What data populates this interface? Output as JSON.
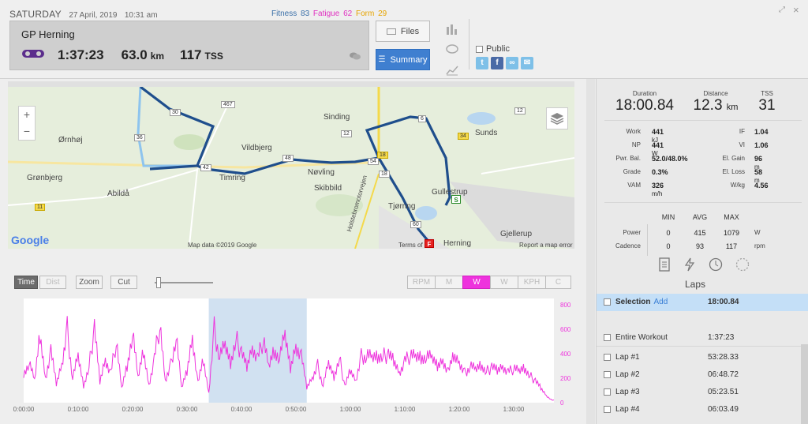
{
  "header": {
    "day": "SATURDAY",
    "date": "27 April, 2019",
    "time": "10:31 am",
    "fitness_label": "Fitness",
    "fitness": "83",
    "fatigue_label": "Fatigue",
    "fatigue": "62",
    "form_label": "Form",
    "form": "29",
    "workout_name": "GP Herning",
    "duration": "1:37:23",
    "distance": "63.0",
    "distance_unit": "km",
    "tss": "117",
    "tss_unit": "TSS",
    "files_label": "Files",
    "summary_label": "Summary",
    "public_label": "Public"
  },
  "map": {
    "places": [
      "Ørnhøj",
      "Grønbjerg",
      "Abildå",
      "Vildbjerg",
      "Timring",
      "Nøvling",
      "Skibbild",
      "Sinding",
      "Sunds",
      "Gullestrup",
      "Tjørring",
      "Gjellerup",
      "Herning",
      "Holstebromotorvejen"
    ],
    "roads": [
      "467",
      "30",
      "36",
      "42",
      "18",
      "48",
      "12",
      "6",
      "34",
      "12",
      "54",
      "18",
      "11",
      "60",
      "A"
    ],
    "google": "Google",
    "attribution": "Map data ©2019 Google",
    "terms": "Terms of",
    "report": "Report a map error",
    "start_marker": "S",
    "finish_marker": "F",
    "zoom_in": "+",
    "zoom_out": "−"
  },
  "chart_controls": {
    "time": "Time",
    "dist": "Dist",
    "zoom": "Zoom",
    "cut": "Cut",
    "metrics": [
      "RPM",
      "M",
      "W",
      "W",
      "KPH",
      "C"
    ],
    "active_metric": "W"
  },
  "chart_data": {
    "type": "line",
    "series": [
      {
        "name": "W",
        "color": "#ee33dd"
      }
    ],
    "x_ticks": [
      "0:00:00",
      "0:10:00",
      "0:20:00",
      "0:30:00",
      "0:40:00",
      "0:50:00",
      "1:00:00",
      "1:10:00",
      "1:20:00",
      "1:30:00"
    ],
    "y_ticks": [
      "800",
      "600",
      "400",
      "200",
      "0"
    ],
    "ylim": [
      0,
      850
    ],
    "x_range_minutes": [
      0,
      97.4
    ],
    "selection_minutes": [
      34,
      52
    ],
    "profile": [
      [
        0,
        250
      ],
      [
        1,
        320
      ],
      [
        2,
        180
      ],
      [
        3,
        560
      ],
      [
        4,
        210
      ],
      [
        5,
        420
      ],
      [
        6,
        150
      ],
      [
        7,
        310
      ],
      [
        8,
        600
      ],
      [
        9,
        200
      ],
      [
        10,
        380
      ],
      [
        11,
        140
      ],
      [
        12,
        290
      ],
      [
        13,
        610
      ],
      [
        14,
        170
      ],
      [
        15,
        360
      ],
      [
        16,
        230
      ],
      [
        17,
        500
      ],
      [
        18,
        120
      ],
      [
        19,
        310
      ],
      [
        20,
        560
      ],
      [
        21,
        200
      ],
      [
        22,
        420
      ],
      [
        23,
        150
      ],
      [
        24,
        350
      ],
      [
        25,
        650
      ],
      [
        26,
        180
      ],
      [
        27,
        300
      ],
      [
        28,
        540
      ],
      [
        29,
        120
      ],
      [
        30,
        260
      ],
      [
        31,
        560
      ],
      [
        32,
        160
      ],
      [
        33,
        340
      ],
      [
        34,
        80
      ],
      [
        35,
        600
      ],
      [
        36,
        380
      ],
      [
        37,
        470
      ],
      [
        38,
        330
      ],
      [
        39,
        520
      ],
      [
        40,
        410
      ],
      [
        41,
        290
      ],
      [
        42,
        460
      ],
      [
        43,
        350
      ],
      [
        44,
        520
      ],
      [
        45,
        300
      ],
      [
        46,
        440
      ],
      [
        47,
        360
      ],
      [
        48,
        540
      ],
      [
        49,
        280
      ],
      [
        50,
        480
      ],
      [
        51,
        380
      ],
      [
        52,
        120
      ],
      [
        53,
        200
      ],
      [
        54,
        300
      ],
      [
        55,
        140
      ],
      [
        56,
        320
      ],
      [
        57,
        210
      ],
      [
        58,
        360
      ],
      [
        59,
        130
      ],
      [
        60,
        260
      ],
      [
        61,
        180
      ],
      [
        62,
        380
      ],
      [
        63,
        390
      ],
      [
        64,
        370
      ],
      [
        65,
        385
      ],
      [
        66,
        380
      ],
      [
        67,
        395
      ],
      [
        68,
        340
      ],
      [
        69,
        250
      ],
      [
        70,
        330
      ],
      [
        71,
        390
      ],
      [
        72,
        380
      ],
      [
        73,
        385
      ],
      [
        74,
        370
      ],
      [
        75,
        360
      ],
      [
        76,
        300
      ],
      [
        77,
        360
      ],
      [
        78,
        250
      ],
      [
        79,
        370
      ],
      [
        80,
        330
      ],
      [
        81,
        240
      ],
      [
        82,
        300
      ],
      [
        83,
        270
      ],
      [
        84,
        310
      ],
      [
        85,
        250
      ],
      [
        86,
        290
      ],
      [
        87,
        260
      ],
      [
        88,
        300
      ],
      [
        89,
        240
      ],
      [
        90,
        280
      ],
      [
        91,
        260
      ],
      [
        92,
        290
      ],
      [
        93,
        220
      ],
      [
        94,
        180
      ],
      [
        95,
        120
      ],
      [
        96,
        60
      ],
      [
        97,
        20
      ]
    ]
  },
  "summary": {
    "duration_label": "Duration",
    "duration": "18:00.84",
    "distance_label": "Distance",
    "distance": "12.3",
    "distance_unit": "km",
    "tss_label": "TSS",
    "tss": "31",
    "metrics_left": [
      {
        "k": "Work",
        "v": "441",
        "u": "kJ"
      },
      {
        "k": "NP",
        "v": "441",
        "u": "W"
      },
      {
        "k": "Pwr. Bal.",
        "v": "52.0/48.0%",
        "u": ""
      },
      {
        "k": "Grade",
        "v": "0.3%",
        "u": ""
      },
      {
        "k": "VAM",
        "v": "326",
        "u": "m/h"
      }
    ],
    "metrics_right": [
      {
        "k": "IF",
        "v": "1.04",
        "u": ""
      },
      {
        "k": "VI",
        "v": "1.06",
        "u": ""
      },
      {
        "k": "El. Gain",
        "v": "96",
        "u": "m"
      },
      {
        "k": "El. Loss",
        "v": "58",
        "u": "m"
      },
      {
        "k": "W/kg",
        "v": "4.56",
        "u": ""
      }
    ],
    "minmax_headers": [
      "MIN",
      "AVG",
      "MAX"
    ],
    "minmax_rows": [
      {
        "k": "Power",
        "min": "0",
        "avg": "415",
        "max": "1079",
        "u": "W"
      },
      {
        "k": "Cadence",
        "min": "0",
        "avg": "93",
        "max": "117",
        "u": "rpm"
      }
    ]
  },
  "laps": {
    "title": "Laps",
    "selection_label": "Selection",
    "selection_add": "Add",
    "selection_time": "18:00.84",
    "entire_label": "Entire Workout",
    "entire_time": "1:37:23",
    "items": [
      {
        "name": "Lap #1",
        "time": "53:28.33"
      },
      {
        "name": "Lap #2",
        "time": "06:48.72"
      },
      {
        "name": "Lap #3",
        "time": "05:23.51"
      },
      {
        "name": "Lap #4",
        "time": "06:03.49"
      }
    ]
  }
}
